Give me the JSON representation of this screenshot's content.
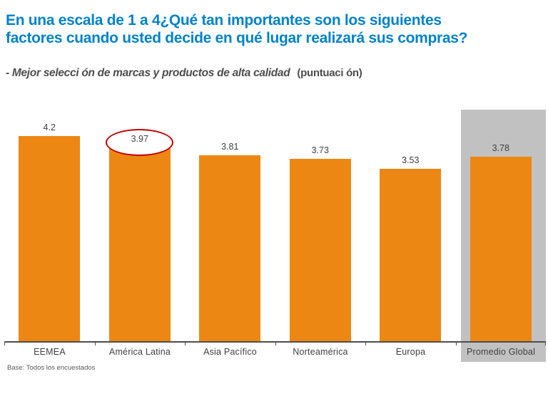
{
  "title": {
    "line1": "En una escala de 1 a 4¿Qué tan importantes son los siguientes",
    "line2": "factores cuando usted decide en qué lugar realizará sus compras?"
  },
  "subtitle": {
    "factor": "- Mejor selecci ón de marcas y productos de alta calidad",
    "unit": "(puntuaci ón)"
  },
  "footnote": "Base: Todos los encuestados",
  "colors": {
    "title_blue": "#0082CA",
    "bar_orange": "#ED8713",
    "highlight_gray": "#C1C1C1",
    "label_gray": "#404040",
    "axis_gray": "#4D4D4D",
    "annotation_red": "#C00000"
  },
  "chart_data": {
    "type": "bar",
    "categories": [
      "EEMEA",
      "América Latina",
      "Asia Pacífico",
      "Norteamérica",
      "Europa",
      "Promedio Global"
    ],
    "values": [
      4.2,
      3.97,
      3.81,
      3.73,
      3.53,
      3.78
    ],
    "title": "Mejor selección de marcas y productos de alta calidad (puntuación)",
    "xlabel": "",
    "ylabel": "",
    "ylim": [
      0,
      4.7
    ],
    "grid": false,
    "legend": "none",
    "bar_color": "#ED8713",
    "annotations": {
      "circled_category": "América Latina",
      "circled_value": 3.97,
      "highlighted_category": "Promedio Global",
      "highlight_style": "gray background column"
    }
  }
}
